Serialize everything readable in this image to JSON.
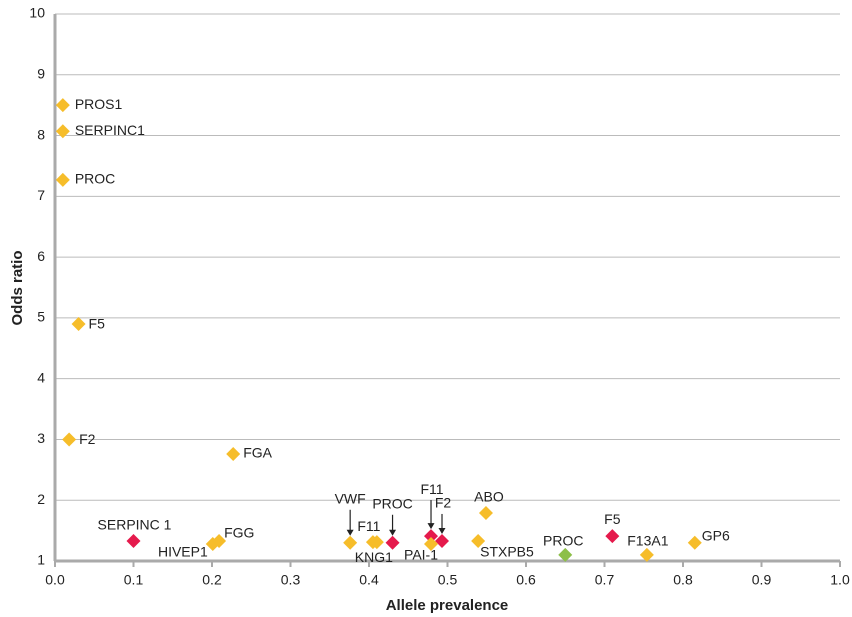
{
  "chart_data": {
    "type": "scatter",
    "xlabel": "Allele prevalence",
    "ylabel": "Odds ratio",
    "xlim": [
      0,
      1
    ],
    "ylim": [
      1,
      10
    ],
    "xticks": [
      {
        "value": 0,
        "label": "0.0"
      },
      0.1,
      0.2,
      0.3,
      0.4,
      0.5,
      0.6,
      0.7,
      0.8,
      0.9,
      {
        "value": 1,
        "label": "1.0"
      }
    ],
    "yticks": [
      1,
      2,
      3,
      4,
      5,
      6,
      7,
      8,
      9,
      10
    ],
    "grid": true,
    "points": [
      {
        "label": "PROS1",
        "x": 0.01,
        "y": 8.5,
        "color": "#f6bd2a"
      },
      {
        "label": "SERPINC1",
        "x": 0.01,
        "y": 8.07,
        "color": "#f6bd2a"
      },
      {
        "label": "PROC",
        "x": 0.01,
        "y": 7.27,
        "color": "#f6bd2a"
      },
      {
        "label": "F5",
        "x": 0.03,
        "y": 4.9,
        "color": "#f6bd2a"
      },
      {
        "label": "F2",
        "x": 0.018,
        "y": 3.0,
        "color": "#f6bd2a"
      },
      {
        "label": "FGA",
        "x": 0.227,
        "y": 2.76,
        "color": "#f6bd2a"
      },
      {
        "label": "SERPINC 1",
        "x": 0.1,
        "y": 1.33,
        "color": "#e51a4c"
      },
      {
        "label": "HIVEP1",
        "x": 0.201,
        "y": 1.28,
        "color": "#f6bd2a"
      },
      {
        "label": "FGG",
        "x": 0.209,
        "y": 1.33,
        "color": "#f6bd2a"
      },
      {
        "label": "VWF",
        "x": 0.376,
        "y": 1.3,
        "color": "#f6bd2a"
      },
      {
        "label": "F11",
        "x": 0.405,
        "y": 1.31,
        "color": "#f6bd2a"
      },
      {
        "label": "KNG1",
        "x": 0.41,
        "y": 1.31,
        "color": "#f6bd2a"
      },
      {
        "label": "PROC",
        "x": 0.43,
        "y": 1.3,
        "color": "#e51a4c"
      },
      {
        "label": "F11",
        "x": 0.479,
        "y": 1.41,
        "color": "#e51a4c"
      },
      {
        "label": "F2",
        "x": 0.493,
        "y": 1.33,
        "color": "#e51a4c"
      },
      {
        "label": "PAI-1",
        "x": 0.479,
        "y": 1.28,
        "color": "#f6bd2a"
      },
      {
        "label": "ABO",
        "x": 0.549,
        "y": 1.79,
        "color": "#f6bd2a"
      },
      {
        "label": "STXPB5",
        "x": 0.539,
        "y": 1.33,
        "color": "#f6bd2a"
      },
      {
        "label": "PROC",
        "x": 0.65,
        "y": 1.1,
        "color": "#8dbf48"
      },
      {
        "label": "F5",
        "x": 0.71,
        "y": 1.41,
        "color": "#e51a4c"
      },
      {
        "label": "F13A1",
        "x": 0.754,
        "y": 1.1,
        "color": "#f6bd2a"
      },
      {
        "label": "GP6",
        "x": 0.815,
        "y": 1.3,
        "color": "#f6bd2a"
      }
    ]
  }
}
